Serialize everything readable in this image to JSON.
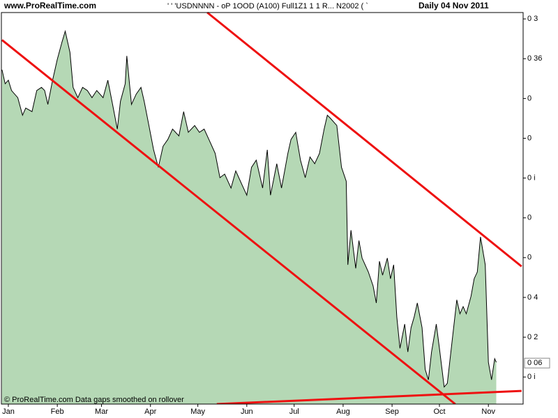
{
  "chart_data": {
    "type": "area",
    "site": "www.ProRealTime.com",
    "subtitle": "' ' 'USDNNNN - oP 1OOD (A100) Full1Z1 1 1 R...   N2002 ( `",
    "date_label": "Daily  04 Nov 2011",
    "footer": "© ProRealTime.com  Data gaps smoothed on rollover",
    "color": "#b5d8b5",
    "line_color": "#000000",
    "x": [
      -2,
      0,
      2,
      4,
      8,
      11,
      13,
      17,
      20,
      23,
      25,
      27,
      30,
      33,
      36,
      38,
      41,
      43,
      46,
      49,
      52,
      55,
      58,
      62,
      65,
      68,
      71,
      73,
      76,
      77,
      80,
      83,
      86,
      88,
      91,
      94,
      97,
      100,
      103,
      106,
      110,
      113,
      116,
      120,
      123,
      126,
      129,
      133,
      136,
      139,
      143,
      146,
      150,
      153,
      156,
      159,
      163,
      166,
      168,
      172,
      175,
      179,
      181,
      184,
      187,
      190,
      193,
      196,
      199,
      202,
      204,
      206,
      210,
      213,
      216,
      217,
      219,
      222,
      224,
      226,
      230,
      233,
      235,
      237,
      239,
      242,
      244,
      246,
      248,
      250,
      253,
      255,
      257,
      259,
      261,
      264,
      266,
      268,
      270,
      273,
      275,
      278,
      280,
      283,
      286,
      288,
      290,
      292,
      295,
      297,
      299,
      301,
      304,
      306,
      308,
      310,
      311
    ],
    "values": [
      7.72,
      7.37,
      7.46,
      7.2,
      7.02,
      6.58,
      6.76,
      6.67,
      7.2,
      7.28,
      7.2,
      6.85,
      7.46,
      7.98,
      8.42,
      8.69,
      8.16,
      7.28,
      7.02,
      7.28,
      7.2,
      7.02,
      7.2,
      7.02,
      7.46,
      6.85,
      6.23,
      6.93,
      7.37,
      8.07,
      6.85,
      7.11,
      7.28,
      6.93,
      6.32,
      5.71,
      5.27,
      5.8,
      5.97,
      6.23,
      6.06,
      6.67,
      6.15,
      6.32,
      6.15,
      6.23,
      5.97,
      5.62,
      5.01,
      5.1,
      4.75,
      5.18,
      4.83,
      4.57,
      5.27,
      5.45,
      4.75,
      5.71,
      4.57,
      5.36,
      4.75,
      5.62,
      5.97,
      6.15,
      5.45,
      5.01,
      5.53,
      5.36,
      5.62,
      6.23,
      6.58,
      6.5,
      6.32,
      5.27,
      4.92,
      2.82,
      3.69,
      2.73,
      3.43,
      2.99,
      2.64,
      2.29,
      1.86,
      2.91,
      2.56,
      2.99,
      2.47,
      2.82,
      1.51,
      0.72,
      1.33,
      0.63,
      1.24,
      1.51,
      1.86,
      1.24,
      0.19,
      -0.07,
      0.63,
      1.33,
      0.72,
      -0.25,
      -0.16,
      0.89,
      1.94,
      1.59,
      1.77,
      1.59,
      2.03,
      2.47,
      2.64,
      3.52,
      2.82,
      0.37,
      -0.07,
      0.46,
      0.37
    ],
    "xlim": [
      -2.4,
      328
    ],
    "xticks": [
      {
        "value": 2,
        "label": "Jan"
      },
      {
        "value": 33,
        "label": "Feb"
      },
      {
        "value": 61,
        "label": "Mar"
      },
      {
        "value": 92,
        "label": "Apr"
      },
      {
        "value": 122,
        "label": "May"
      },
      {
        "value": 153,
        "label": "Jun"
      },
      {
        "value": 183,
        "label": "Jul"
      },
      {
        "value": 214,
        "label": "Aug"
      },
      {
        "value": 245,
        "label": "Sep"
      },
      {
        "value": 275,
        "label": "Oct"
      },
      {
        "value": 306,
        "label": "Nov"
      }
    ],
    "ylim": [
      -0.68,
      9.16
    ],
    "yticks": [
      {
        "value": 9,
        "label": "0 3"
      },
      {
        "value": 8,
        "label": "0 36"
      },
      {
        "value": 7,
        "label": "0"
      },
      {
        "value": 6,
        "label": "0"
      },
      {
        "value": 5,
        "label": "0 i"
      },
      {
        "value": 4,
        "label": "0"
      },
      {
        "value": 3,
        "label": "0"
      },
      {
        "value": 2,
        "label": "0 4"
      },
      {
        "value": 1,
        "label": "0 2"
      },
      {
        "value": 0,
        "label": "0 i"
      }
    ],
    "last_value": {
      "value": 0.35,
      "label": "0 06"
    },
    "trendlines": [
      {
        "color": "#ee1111",
        "x": [
          -2,
          285
        ],
        "y": [
          8.47,
          -0.68
        ]
      },
      {
        "color": "#ee1111",
        "x": [
          128,
          327
        ],
        "y": [
          9.16,
          2.78
        ]
      },
      {
        "color": "#ee1111",
        "x": [
          134,
          327
        ],
        "y": [
          -0.68,
          -0.35
        ]
      }
    ]
  }
}
